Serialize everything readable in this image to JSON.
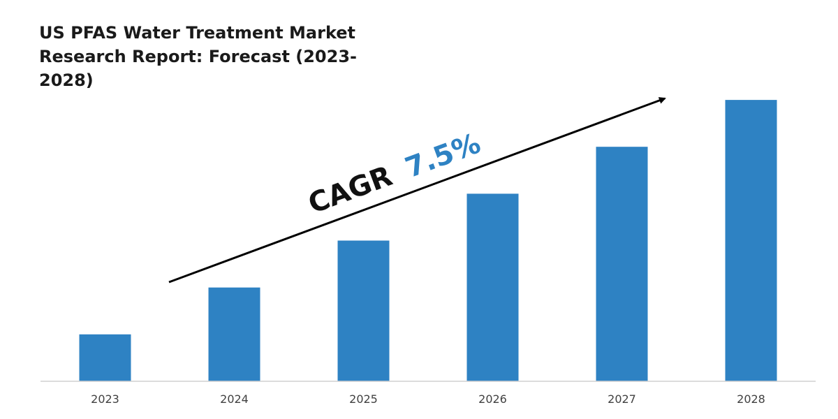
{
  "chart_data": {
    "type": "bar",
    "title": "US PFAS Water Treatment Market Research Report: Forecast (2023-2028)",
    "categories": [
      "2023",
      "2024",
      "2025",
      "2026",
      "2027",
      "2028"
    ],
    "values": [
      1.0,
      2.0,
      3.0,
      4.0,
      5.0,
      6.0
    ],
    "ylim": [
      0,
      6.15
    ],
    "grid": false,
    "xlabel": "",
    "ylabel": "",
    "bar_color": "#2e82c3",
    "annotation": {
      "prefix": "CAGR",
      "value": "7.5%",
      "prefix_color": "#111111",
      "value_color": "#2e82c3"
    }
  }
}
